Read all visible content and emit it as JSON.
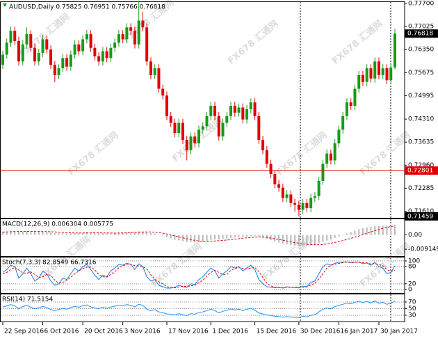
{
  "chart_data": [
    {
      "type": "candlestick",
      "title": "AUDUSD,Daily  0.75825 0.76951 0.75766 0.76818",
      "watermark": "FX678 汇通网",
      "up_color": "#1a9a1a",
      "down_color": "#e00000",
      "ylim": [
        0.71416,
        0.77741
      ],
      "yticks": [
        {
          "value": 0.777,
          "label": "0.77700"
        },
        {
          "value": 0.77025,
          "label": "0.77025"
        },
        {
          "value": 0.7635,
          "label": "0.76350"
        },
        {
          "value": 0.75675,
          "label": "0.75675"
        },
        {
          "value": 0.74995,
          "label": "0.74995"
        },
        {
          "value": 0.7431,
          "label": "0.74310"
        },
        {
          "value": 0.73635,
          "label": "0.73635"
        },
        {
          "value": 0.7296,
          "label": "0.72960"
        },
        {
          "value": 0.72285,
          "label": "0.72285"
        },
        {
          "value": 0.7161,
          "label": "0.71610"
        }
      ],
      "price_labels": [
        {
          "value": 0.76818,
          "label": "0.76818",
          "color": "#000000"
        },
        {
          "value": 0.72801,
          "label": "0.72801",
          "color": "#e00000",
          "line": true
        },
        {
          "value": 0.71459,
          "label": "0.71459",
          "color": "#000000"
        }
      ],
      "xticks": [
        {
          "value": 0,
          "label": "22 Sep 2016"
        },
        {
          "value": 10,
          "label": "6 Oct 2016"
        },
        {
          "value": 20,
          "label": "20 Oct 2016"
        },
        {
          "value": 30,
          "label": "3 Nov 2016"
        },
        {
          "value": 41,
          "label": "17 Nov 2016"
        },
        {
          "value": 52,
          "label": "1 Dec 2016"
        },
        {
          "value": 63,
          "label": "15 Dec 2016"
        },
        {
          "value": 74,
          "label": "30 Dec 2016"
        },
        {
          "value": 84,
          "label": "16 Jan 2017"
        },
        {
          "value": 94,
          "label": "30 Jan 2017"
        }
      ],
      "open": [
        0.759,
        0.762,
        0.7655,
        0.769,
        0.766,
        0.76,
        0.765,
        0.768,
        0.764,
        0.76,
        0.7625,
        0.7665,
        0.7635,
        0.759,
        0.756,
        0.758,
        0.761,
        0.7585,
        0.762,
        0.765,
        0.763,
        0.7665,
        0.768,
        0.764,
        0.7615,
        0.76,
        0.763,
        0.761,
        0.764,
        0.7655,
        0.768,
        0.7665,
        0.77,
        0.769,
        0.765,
        0.772,
        0.77,
        0.76,
        0.756,
        0.758,
        0.752,
        0.75,
        0.744,
        0.742,
        0.739,
        0.742,
        0.737,
        0.734,
        0.738,
        0.736,
        0.74,
        0.741,
        0.744,
        0.747,
        0.744,
        0.738,
        0.742,
        0.744,
        0.747,
        0.745,
        0.7465,
        0.743,
        0.746,
        0.748,
        0.744,
        0.737,
        0.734,
        0.73,
        0.727,
        0.724,
        0.723,
        0.72,
        0.721,
        0.7185,
        0.718,
        0.7165,
        0.7185,
        0.717,
        0.72,
        0.7205,
        0.725,
        0.73,
        0.733,
        0.731,
        0.736,
        0.74,
        0.744,
        0.748,
        0.747,
        0.752,
        0.756,
        0.754,
        0.758,
        0.755,
        0.76,
        0.756,
        0.758,
        0.7545,
        0.75825
      ],
      "high": [
        0.7632,
        0.7667,
        0.7702,
        0.7702,
        0.7672,
        0.7662,
        0.77,
        0.7692,
        0.7652,
        0.7637,
        0.7677,
        0.7677,
        0.7647,
        0.7602,
        0.7592,
        0.7622,
        0.7622,
        0.7632,
        0.7662,
        0.7662,
        0.7677,
        0.7692,
        0.7692,
        0.7652,
        0.7627,
        0.7642,
        0.7642,
        0.7652,
        0.7667,
        0.7692,
        0.7692,
        0.7712,
        0.7712,
        0.7702,
        0.7778,
        0.7745,
        0.7712,
        0.7612,
        0.7592,
        0.7592,
        0.7532,
        0.7512,
        0.7452,
        0.7432,
        0.7432,
        0.7432,
        0.7382,
        0.7392,
        0.7392,
        0.7412,
        0.7422,
        0.7452,
        0.7482,
        0.7482,
        0.7452,
        0.7432,
        0.7452,
        0.7482,
        0.7482,
        0.7477,
        0.7477,
        0.7472,
        0.7492,
        0.7492,
        0.7452,
        0.7382,
        0.7352,
        0.7312,
        0.7282,
        0.7252,
        0.7242,
        0.7222,
        0.7222,
        0.7197,
        0.7192,
        0.7197,
        0.7197,
        0.7212,
        0.7217,
        0.7262,
        0.7312,
        0.7342,
        0.7342,
        0.7372,
        0.7412,
        0.7452,
        0.7492,
        0.7492,
        0.7532,
        0.7572,
        0.7572,
        0.7592,
        0.7592,
        0.7612,
        0.7612,
        0.7592,
        0.7592,
        0.7594,
        0.76951
      ],
      "low": [
        0.7578,
        0.7608,
        0.7643,
        0.7648,
        0.7588,
        0.7588,
        0.7638,
        0.7628,
        0.7588,
        0.7588,
        0.7613,
        0.7623,
        0.7578,
        0.754,
        0.7548,
        0.7568,
        0.7573,
        0.7573,
        0.7608,
        0.7618,
        0.7618,
        0.7653,
        0.7628,
        0.7603,
        0.7588,
        0.7588,
        0.7598,
        0.7598,
        0.7628,
        0.7643,
        0.7653,
        0.7653,
        0.7678,
        0.7638,
        0.7638,
        0.7688,
        0.7588,
        0.7548,
        0.7548,
        0.7508,
        0.7488,
        0.7428,
        0.7408,
        0.7378,
        0.7378,
        0.7358,
        0.731,
        0.7328,
        0.7348,
        0.7348,
        0.7388,
        0.7398,
        0.7428,
        0.7428,
        0.7368,
        0.7368,
        0.7408,
        0.7428,
        0.7438,
        0.7438,
        0.7418,
        0.7418,
        0.7448,
        0.7428,
        0.7358,
        0.7328,
        0.7288,
        0.7258,
        0.7228,
        0.7218,
        0.7188,
        0.7188,
        0.7173,
        0.716,
        0.7146,
        0.7153,
        0.7158,
        0.7158,
        0.7188,
        0.7193,
        0.7238,
        0.7288,
        0.7298,
        0.7298,
        0.7348,
        0.7388,
        0.7428,
        0.7458,
        0.7458,
        0.7508,
        0.7528,
        0.7528,
        0.7538,
        0.7538,
        0.7548,
        0.7548,
        0.7533,
        0.7533,
        0.75766
      ],
      "close": [
        0.762,
        0.7655,
        0.769,
        0.766,
        0.76,
        0.765,
        0.768,
        0.764,
        0.76,
        0.7625,
        0.7665,
        0.7635,
        0.759,
        0.756,
        0.758,
        0.761,
        0.7585,
        0.762,
        0.765,
        0.763,
        0.7665,
        0.768,
        0.764,
        0.7615,
        0.76,
        0.763,
        0.761,
        0.764,
        0.7655,
        0.768,
        0.7665,
        0.77,
        0.769,
        0.765,
        0.772,
        0.77,
        0.76,
        0.756,
        0.758,
        0.752,
        0.75,
        0.744,
        0.742,
        0.739,
        0.742,
        0.737,
        0.734,
        0.738,
        0.736,
        0.74,
        0.741,
        0.744,
        0.747,
        0.744,
        0.738,
        0.742,
        0.744,
        0.747,
        0.745,
        0.7465,
        0.743,
        0.746,
        0.748,
        0.744,
        0.737,
        0.734,
        0.73,
        0.727,
        0.724,
        0.723,
        0.72,
        0.721,
        0.7185,
        0.718,
        0.7165,
        0.7185,
        0.717,
        0.72,
        0.7205,
        0.725,
        0.73,
        0.733,
        0.731,
        0.736,
        0.74,
        0.744,
        0.748,
        0.747,
        0.752,
        0.756,
        0.754,
        0.758,
        0.755,
        0.76,
        0.756,
        0.758,
        0.7545,
        0.7582,
        0.76818
      ]
    },
    {
      "type": "bar",
      "title": "MACD(12,26,9) 0.006304 0.005775",
      "ylim": [
        -0.0135,
        0.01
      ],
      "yticks": [
        {
          "value": 0,
          "label": "0.00"
        },
        {
          "value": -0.009149,
          "label": "-0.009149"
        }
      ],
      "grid": false,
      "series": [
        {
          "kind": "bar",
          "color": "#b8b8b8",
          "values": [
            0.002,
            0.0022,
            0.0025,
            0.0025,
            0.0022,
            0.0022,
            0.0024,
            0.0023,
            0.002,
            0.0019,
            0.002,
            0.0019,
            0.0016,
            0.0012,
            0.001,
            0.001,
            0.0009,
            0.001,
            0.0012,
            0.0012,
            0.0014,
            0.0016,
            0.0015,
            0.0013,
            0.0011,
            0.0011,
            0.001,
            0.0011,
            0.0012,
            0.0014,
            0.0015,
            0.0018,
            0.0019,
            0.0018,
            0.0022,
            0.0023,
            0.0018,
            0.0012,
            0.0009,
            0.0002,
            -0.0005,
            -0.0014,
            -0.0022,
            -0.003,
            -0.0034,
            -0.004,
            -0.0046,
            -0.0047,
            -0.0049,
            -0.0047,
            -0.0044,
            -0.0039,
            -0.0032,
            -0.0029,
            -0.003,
            -0.0028,
            -0.0024,
            -0.0019,
            -0.0016,
            -0.0013,
            -0.0013,
            -0.001,
            -0.0006,
            -0.0006,
            -0.0012,
            -0.0018,
            -0.0026,
            -0.0034,
            -0.0042,
            -0.0049,
            -0.0056,
            -0.006,
            -0.0065,
            -0.0068,
            -0.007,
            -0.007,
            -0.0069,
            -0.0066,
            -0.0062,
            -0.0054,
            -0.0045,
            -0.0036,
            -0.0029,
            -0.002,
            -0.001,
            0.0,
            0.001,
            0.0018,
            0.0027,
            0.0036,
            0.0042,
            0.0048,
            0.0051,
            0.0055,
            0.0056,
            0.0058,
            0.0058,
            0.0059,
            0.006304
          ]
        },
        {
          "kind": "line",
          "color": "#e00000",
          "dashed": true,
          "values": [
            0.0018,
            0.0019,
            0.002,
            0.0021,
            0.0022,
            0.0022,
            0.0022,
            0.0023,
            0.0022,
            0.0022,
            0.0021,
            0.0021,
            0.002,
            0.0019,
            0.0017,
            0.0016,
            0.0014,
            0.0013,
            0.0012,
            0.0012,
            0.0012,
            0.0013,
            0.0013,
            0.0014,
            0.0013,
            0.0013,
            0.0012,
            0.0012,
            0.0011,
            0.0012,
            0.0012,
            0.0013,
            0.0015,
            0.0016,
            0.0017,
            0.0018,
            0.0019,
            0.0019,
            0.0017,
            0.0015,
            0.0011,
            0.0006,
            0.0,
            -0.0006,
            -0.0012,
            -0.0018,
            -0.0024,
            -0.003,
            -0.0035,
            -0.0039,
            -0.0041,
            -0.0042,
            -0.0041,
            -0.0039,
            -0.0037,
            -0.0035,
            -0.0033,
            -0.003,
            -0.0027,
            -0.0024,
            -0.0021,
            -0.0019,
            -0.0016,
            -0.0014,
            -0.0013,
            -0.0014,
            -0.0016,
            -0.002,
            -0.0024,
            -0.0029,
            -0.0034,
            -0.0039,
            -0.0044,
            -0.0049,
            -0.0053,
            -0.0057,
            -0.006,
            -0.0062,
            -0.0063,
            -0.0063,
            -0.0061,
            -0.0057,
            -0.0053,
            -0.0048,
            -0.0042,
            -0.0036,
            -0.0029,
            -0.0022,
            -0.0015,
            -0.0007,
            0.0002,
            0.0011,
            0.0019,
            0.0027,
            0.0035,
            0.0042,
            0.0048,
            0.0053,
            0.005775
          ]
        }
      ]
    },
    {
      "type": "line",
      "title": "Stoch(7,3,3) 82.8549 66.7316",
      "ylim": [
        -12,
        112
      ],
      "yticks": [
        100,
        80,
        20,
        0
      ],
      "grid": true,
      "series": [
        {
          "kind": "line",
          "color": "#1e78e6",
          "dashed": false,
          "values": [
            60,
            70,
            85,
            80,
            40,
            55,
            75,
            55,
            30,
            40,
            65,
            55,
            30,
            15,
            20,
            40,
            35,
            55,
            75,
            65,
            80,
            88,
            70,
            50,
            35,
            50,
            45,
            65,
            75,
            88,
            85,
            92,
            88,
            70,
            90,
            80,
            45,
            30,
            35,
            15,
            10,
            5,
            5,
            8,
            15,
            10,
            8,
            20,
            18,
            35,
            45,
            60,
            75,
            65,
            40,
            55,
            65,
            80,
            75,
            80,
            65,
            75,
            85,
            70,
            35,
            20,
            10,
            8,
            6,
            8,
            5,
            10,
            8,
            7,
            6,
            12,
            10,
            25,
            30,
            55,
            80,
            90,
            85,
            92,
            95,
            96,
            97,
            93,
            95,
            96,
            90,
            93,
            85,
            95,
            80,
            75,
            55,
            60,
            82.8549
          ]
        },
        {
          "kind": "line",
          "color": "#e00000",
          "dashed": true,
          "values": [
            55,
            60,
            70,
            78,
            68,
            58,
            57,
            62,
            53,
            42,
            45,
            53,
            50,
            33,
            22,
            25,
            32,
            43,
            55,
            65,
            73,
            78,
            79,
            69,
            52,
            45,
            43,
            53,
            62,
            76,
            83,
            88,
            88,
            83,
            83,
            80,
            72,
            52,
            37,
            27,
            20,
            10,
            7,
            6,
            9,
            11,
            11,
            13,
            15,
            24,
            33,
            47,
            60,
            67,
            60,
            53,
            53,
            67,
            73,
            78,
            73,
            73,
            75,
            77,
            63,
            42,
            22,
            13,
            8,
            7,
            6,
            8,
            8,
            8,
            7,
            8,
            9,
            16,
            22,
            37,
            55,
            75,
            85,
            89,
            91,
            94,
            96,
            95,
            95,
            95,
            94,
            93,
            89,
            91,
            87,
            83,
            70,
            63,
            66.7316
          ]
        }
      ]
    },
    {
      "type": "line",
      "title": "RSI(14) 71.5154",
      "ylim": [
        11,
        93
      ],
      "yticks": [
        70,
        50,
        30
      ],
      "grid": true,
      "series": [
        {
          "kind": "line",
          "color": "#1e90ff",
          "dashed": false,
          "values": [
            55,
            58,
            62,
            58,
            50,
            56,
            60,
            54,
            49,
            52,
            57,
            53,
            47,
            44,
            47,
            51,
            48,
            53,
            57,
            54,
            59,
            61,
            55,
            52,
            50,
            54,
            51,
            55,
            57,
            60,
            58,
            62,
            60,
            55,
            63,
            60,
            48,
            44,
            47,
            40,
            38,
            34,
            33,
            31,
            35,
            31,
            29,
            35,
            33,
            38,
            40,
            44,
            48,
            44,
            37,
            42,
            45,
            49,
            46,
            48,
            44,
            48,
            51,
            45,
            37,
            34,
            31,
            29,
            27,
            26,
            24,
            26,
            24,
            24,
            23,
            27,
            25,
            30,
            31,
            40,
            48,
            52,
            49,
            56,
            60,
            63,
            67,
            65,
            69,
            72,
            68,
            72,
            67,
            73,
            66,
            69,
            63,
            67,
            71.5154
          ]
        }
      ]
    }
  ]
}
